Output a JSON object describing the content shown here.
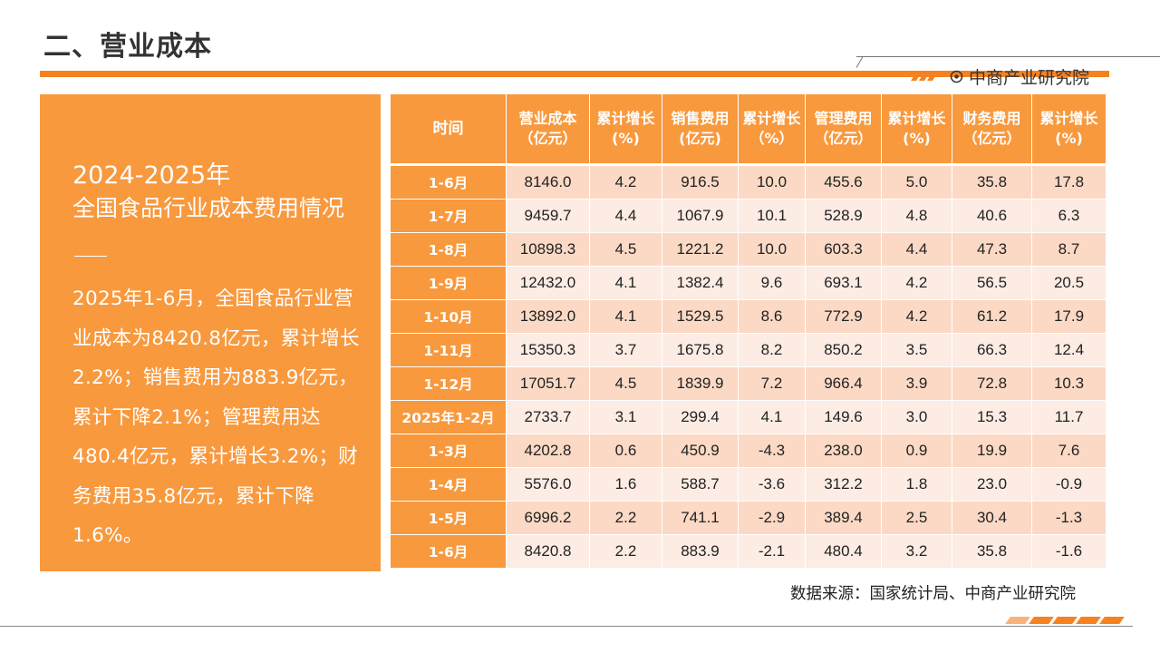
{
  "page": {
    "title": "二、营业成本",
    "brand": "中商产业研究院"
  },
  "panel": {
    "heading": "2024-2025年",
    "subheading": "全国食品行业成本费用情况",
    "body": "2025年1-6月，全国食品行业营业成本为8420.8亿元，累计增长2.2%；销售费用为883.9亿元，累计下降2.1%；管理费用达480.4亿元，累计增长3.2%；财务费用35.8亿元，累计下降1.6%。"
  },
  "table": {
    "headers": [
      "时间",
      "营业成本（亿元）",
      "累计增长(%)",
      "销售费用(亿元)",
      "累计增长（%）",
      "管理费用（亿元）",
      "累计增长(%)",
      "财务费用（亿元）",
      "累计增长(%)"
    ],
    "rows": [
      [
        "1-6月",
        "8146.0",
        "4.2",
        "916.5",
        "10.0",
        "455.6",
        "5.0",
        "35.8",
        "17.8"
      ],
      [
        "1-7月",
        "9459.7",
        "4.4",
        "1067.9",
        "10.1",
        "528.9",
        "4.8",
        "40.6",
        "6.3"
      ],
      [
        "1-8月",
        "10898.3",
        "4.5",
        "1221.2",
        "10.0",
        "603.3",
        "4.4",
        "47.3",
        "8.7"
      ],
      [
        "1-9月",
        "12432.0",
        "4.1",
        "1382.4",
        "9.6",
        "693.1",
        "4.2",
        "56.5",
        "20.5"
      ],
      [
        "1-10月",
        "13892.0",
        "4.1",
        "1529.5",
        "8.6",
        "772.9",
        "4.2",
        "61.2",
        "17.9"
      ],
      [
        "1-11月",
        "15350.3",
        "3.7",
        "1675.8",
        "8.2",
        "850.2",
        "3.5",
        "66.3",
        "12.4"
      ],
      [
        "1-12月",
        "17051.7",
        "4.5",
        "1839.9",
        "7.2",
        "966.4",
        "3.9",
        "72.8",
        "10.3"
      ],
      [
        "2025年1-2月",
        "2733.7",
        "3.1",
        "299.4",
        "4.1",
        "149.6",
        "3.0",
        "15.3",
        "11.7"
      ],
      [
        "1-3月",
        "4202.8",
        "0.6",
        "450.9",
        "-4.3",
        "238.0",
        "0.9",
        "19.9",
        "7.6"
      ],
      [
        "1-4月",
        "5576.0",
        "1.6",
        "588.7",
        "-3.6",
        "312.2",
        "1.8",
        "23.0",
        "-0.9"
      ],
      [
        "1-5月",
        "6996.2",
        "2.2",
        "741.1",
        "-2.9",
        "389.4",
        "2.5",
        "30.4",
        "-1.3"
      ],
      [
        "1-6月",
        "8420.8",
        "2.2",
        "883.9",
        "-2.1",
        "480.4",
        "3.2",
        "35.8",
        "-1.6"
      ]
    ]
  },
  "source": "数据来源：国家统计局、中商产业研究院",
  "colors": {
    "accent": "#f5821f",
    "panel": "#f8993e",
    "row_dark": "#fbd9c5",
    "row_light": "#fdece3"
  }
}
